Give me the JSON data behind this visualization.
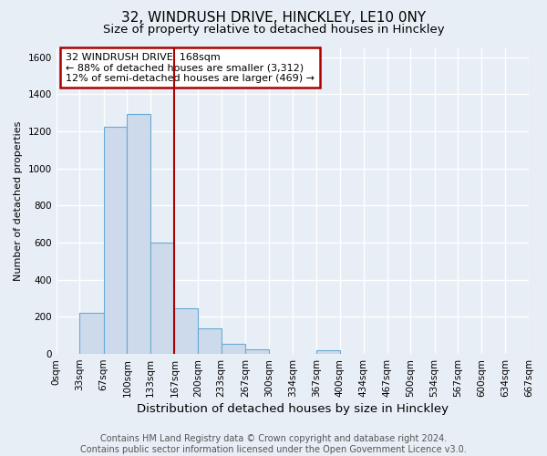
{
  "title1": "32, WINDRUSH DRIVE, HINCKLEY, LE10 0NY",
  "title2": "Size of property relative to detached houses in Hinckley",
  "xlabel": "Distribution of detached houses by size in Hinckley",
  "ylabel": "Number of detached properties",
  "footer1": "Contains HM Land Registry data © Crown copyright and database right 2024.",
  "footer2": "Contains public sector information licensed under the Open Government Licence v3.0.",
  "bin_edges": [
    0,
    33,
    67,
    100,
    133,
    167,
    200,
    233,
    267,
    300,
    334,
    367,
    400,
    434,
    467,
    500,
    534,
    567,
    600,
    634,
    667
  ],
  "bar_heights": [
    0,
    220,
    1225,
    1295,
    600,
    245,
    140,
    55,
    25,
    0,
    0,
    20,
    0,
    0,
    0,
    0,
    0,
    0,
    0,
    0
  ],
  "bar_color": "#ccdaeb",
  "bar_edgecolor": "#6aaad4",
  "property_line_x": 167,
  "property_line_color": "#aa0000",
  "annotation_line1": "32 WINDRUSH DRIVE: 168sqm",
  "annotation_line2": "← 88% of detached houses are smaller (3,312)",
  "annotation_line3": "12% of semi-detached houses are larger (469) →",
  "annotation_box_edgecolor": "#aa0000",
  "annotation_box_facecolor": "#ffffff",
  "ylim": [
    0,
    1650
  ],
  "yticks": [
    0,
    200,
    400,
    600,
    800,
    1000,
    1200,
    1400,
    1600
  ],
  "background_color": "#e8eef5",
  "plot_background": "#e8eef5",
  "grid_color": "#ffffff",
  "title1_fontsize": 11,
  "title2_fontsize": 9.5,
  "xlabel_fontsize": 9.5,
  "ylabel_fontsize": 8,
  "tick_fontsize": 7.5,
  "footer_fontsize": 7,
  "annotation_fontsize": 8
}
